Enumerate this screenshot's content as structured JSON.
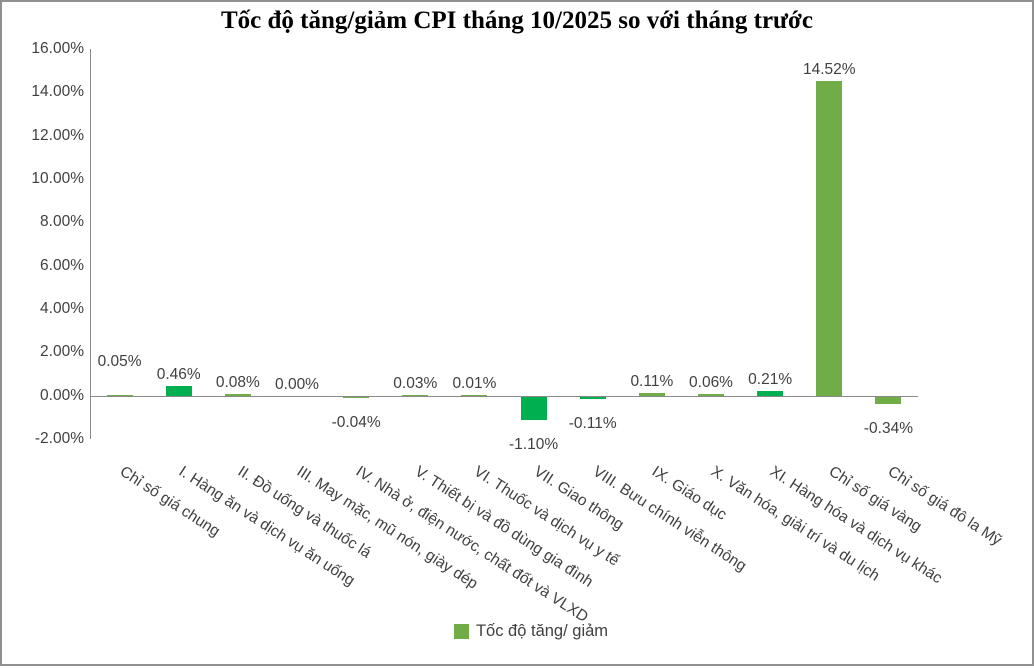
{
  "chart_data": {
    "type": "bar",
    "title": "Tốc độ tăng/giảm CPI tháng 10/2025 so với tháng trước",
    "xlabel": "",
    "ylabel": "",
    "categories": [
      "Chỉ số giá chung",
      "I. Hàng ăn và dịch vụ ăn uống",
      "II. Đồ uống và thuốc lá",
      "III. May mặc, mũ nón, giày dép",
      "IV. Nhà ở, điện nước, chất đốt và VLXD",
      "V. Thiết bị và đồ dùng gia đình",
      "VI. Thuốc và dịch vụ y tế",
      "VII. Giao thông",
      "VIII. Bưu chính viễn thông",
      "IX. Giáo dục",
      "X. Văn hóa, giải trí và du lịch",
      "XI. Hàng hóa và dịch vụ khác",
      "Chỉ số giá vàng",
      "Chỉ số giá đô la Mỹ"
    ],
    "series": [
      {
        "name": "Tốc độ tăng/ giảm",
        "values": [
          0.05,
          0.46,
          0.08,
          0.0,
          -0.04,
          0.03,
          0.01,
          -1.1,
          -0.11,
          0.11,
          0.06,
          0.21,
          14.52,
          -0.34
        ]
      }
    ],
    "value_labels": [
      "0.05%",
      "0.46%",
      "0.08%",
      "0.00%",
      "-0.04%",
      "0.03%",
      "0.01%",
      "-1.10%",
      "-0.11%",
      "0.11%",
      "0.06%",
      "0.21%",
      "14.52%",
      "-0.34%"
    ],
    "point_colors": [
      "#70AD47",
      "#00B050",
      "#70AD47",
      "#70AD47",
      "#70AD47",
      "#70AD47",
      "#70AD47",
      "#00B050",
      "#00B050",
      "#70AD47",
      "#70AD47",
      "#00B050",
      "#70AD47",
      "#70AD47"
    ],
    "y_ticks": [
      "16.00%",
      "14.00%",
      "12.00%",
      "10.00%",
      "8.00%",
      "6.00%",
      "4.00%",
      "2.00%",
      "0.00%",
      "-2.00%"
    ],
    "ylim": [
      -2,
      16
    ],
    "y_step": 2,
    "grid": false,
    "legend_position": "bottom",
    "legend": {
      "label": "Tốc độ tăng/ giảm",
      "swatch_color": "#70AD47"
    },
    "colors": {
      "highlight_green": "#00B050",
      "default_green": "#70AD47",
      "axis_line": "#8a8a8a",
      "label_text": "#404040",
      "border": "#909090"
    }
  }
}
